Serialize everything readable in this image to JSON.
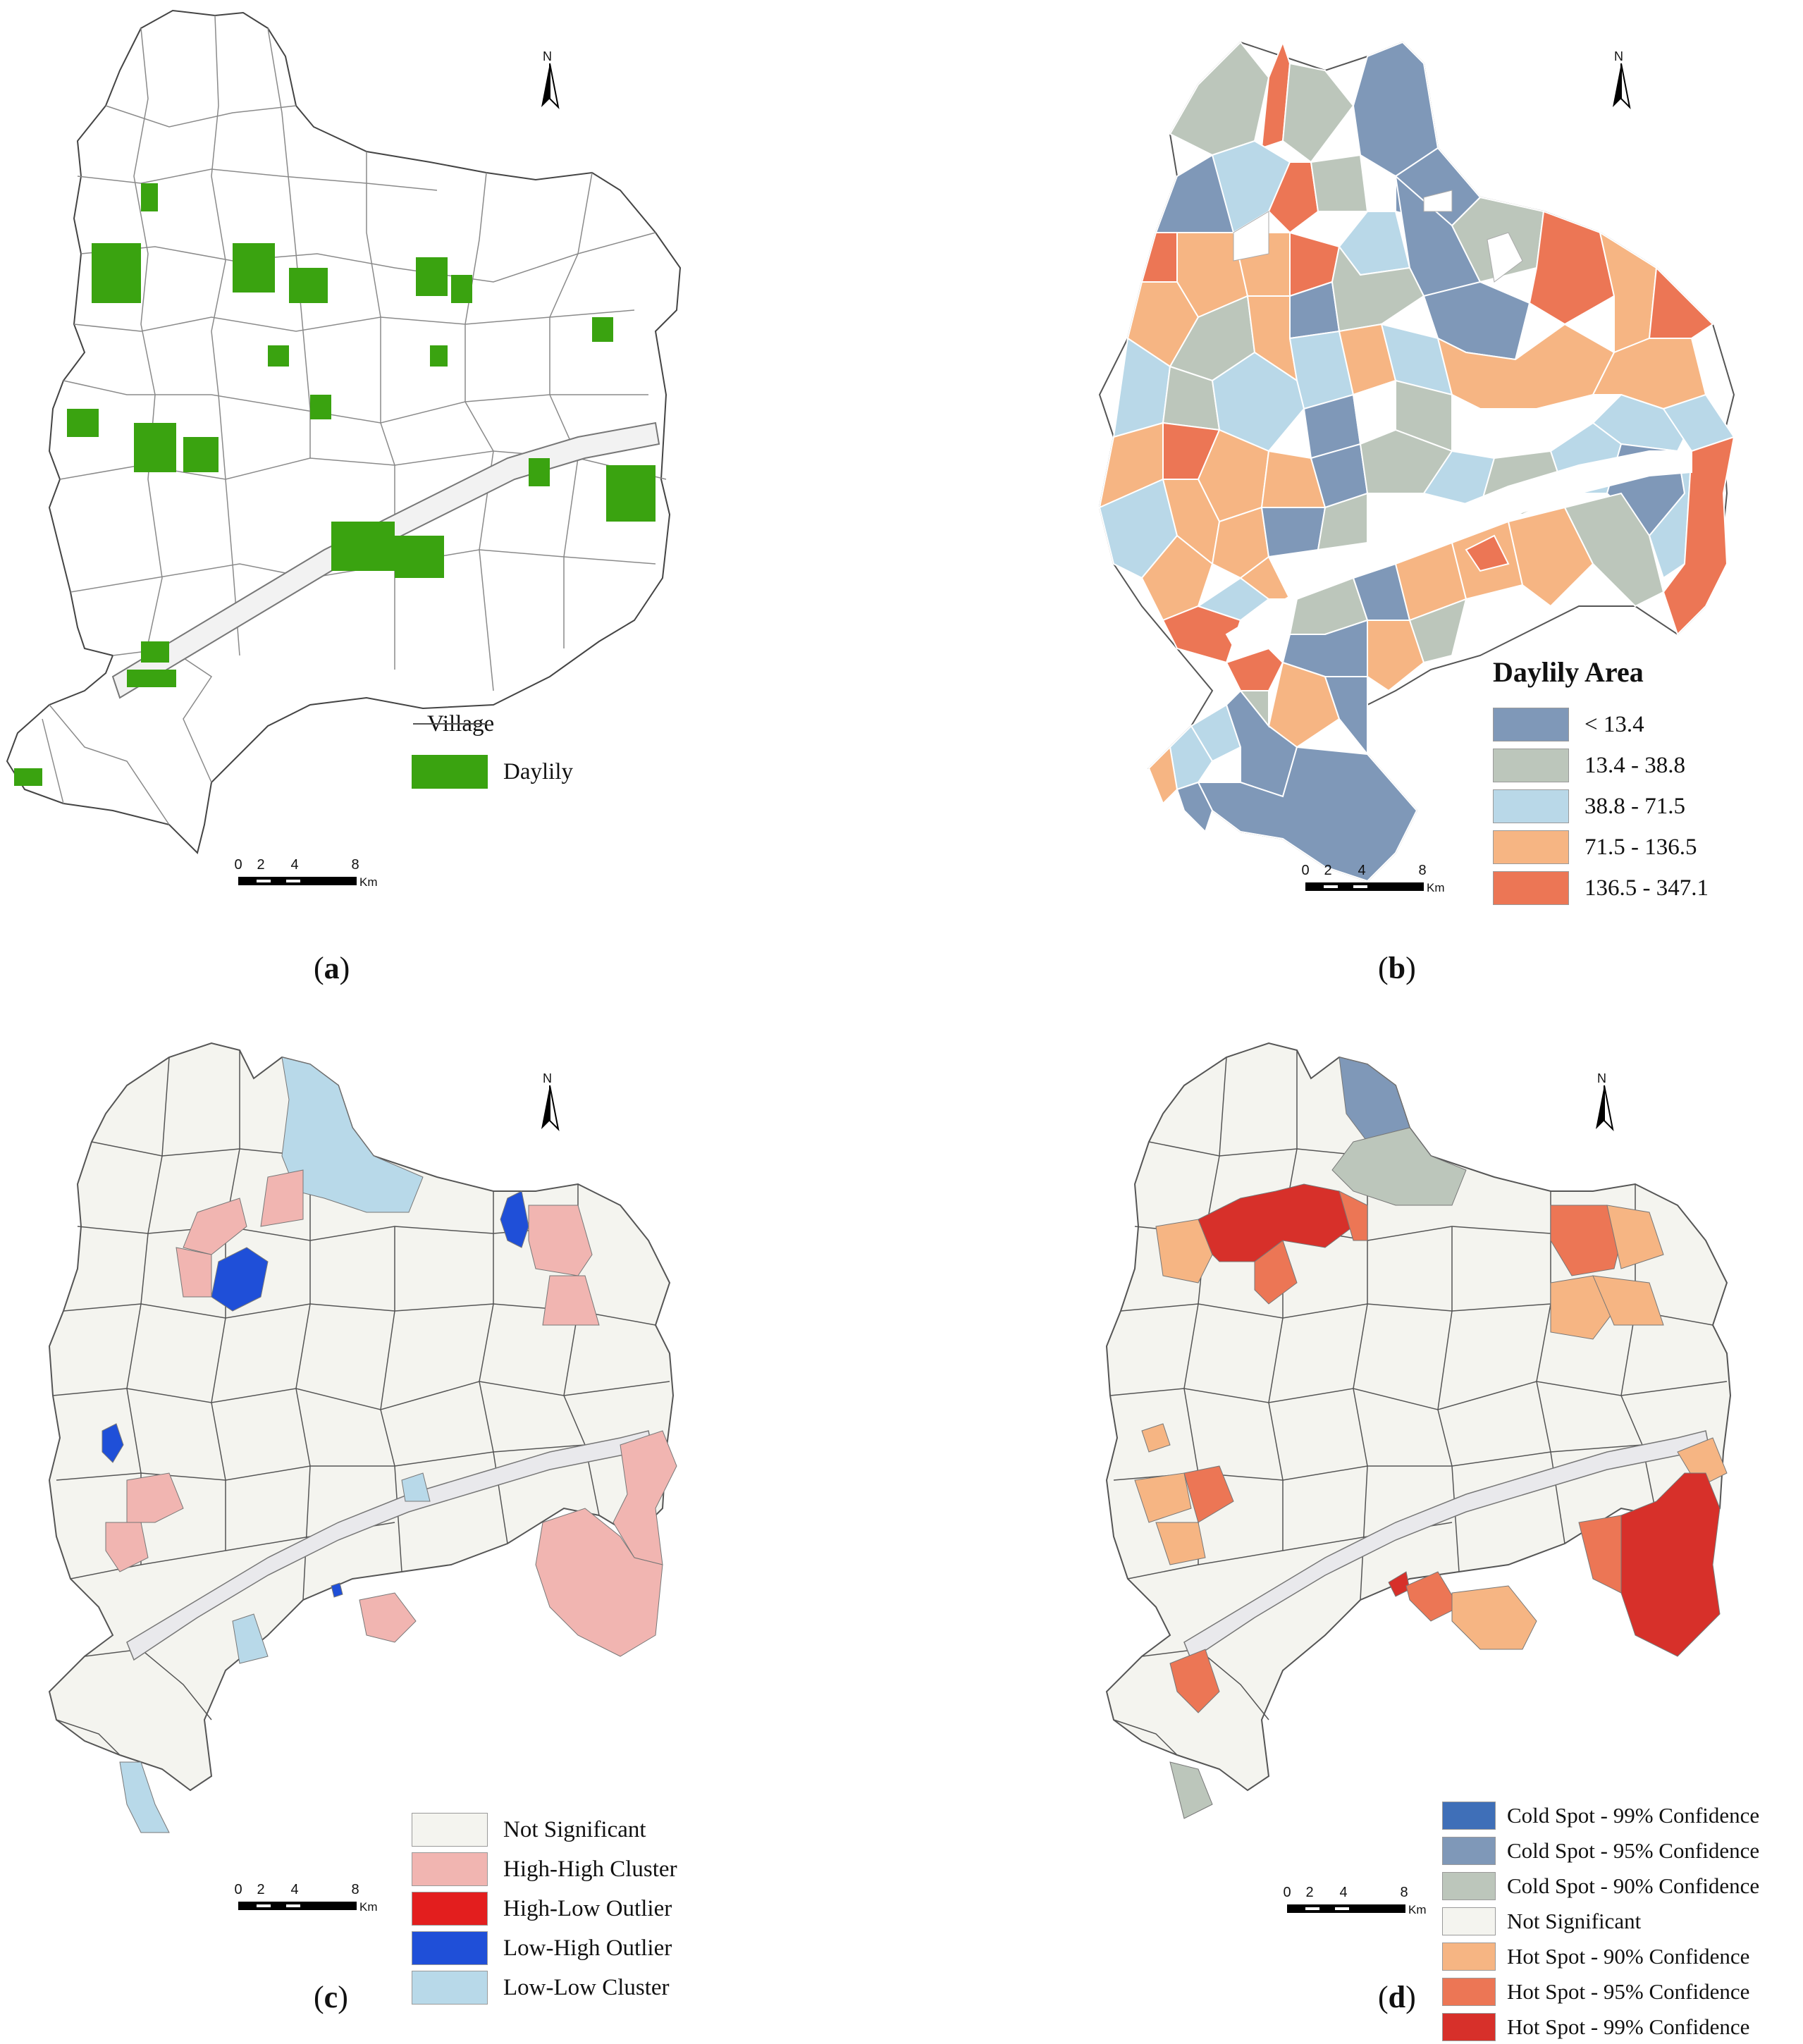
{
  "map_a": {
    "legend": [
      {
        "label": "Village",
        "type": "line",
        "color": "#555555"
      },
      {
        "label": "Daylily",
        "type": "fill",
        "color": "#3aa310"
      }
    ],
    "scale_ticks": [
      "0",
      "2",
      "4",
      "8"
    ],
    "scale_unit": "Km",
    "north": "N",
    "caption_open": "(",
    "caption_letter": "a",
    "caption_close": ")"
  },
  "map_b": {
    "legend_title": "Daylily Area",
    "legend": [
      {
        "label": "< 13.4",
        "color": "#7f98b8"
      },
      {
        "label": "13.4 - 38.8",
        "color": "#bcc6bb"
      },
      {
        "label": "38.8 - 71.5",
        "color": "#b9d8e8"
      },
      {
        "label": "71.5 - 136.5",
        "color": "#f6b583"
      },
      {
        "label": "136.5 - 347.1",
        "color": "#ec7655"
      }
    ],
    "scale_ticks": [
      "0",
      "2",
      "4",
      "8"
    ],
    "scale_unit": "Km",
    "north": "N",
    "caption_open": "(",
    "caption_letter": "b",
    "caption_close": ")"
  },
  "map_c": {
    "legend": [
      {
        "label": "Not Significant",
        "color": "#f4f4ef"
      },
      {
        "label": "High-High Cluster",
        "color": "#f1b5b1"
      },
      {
        "label": "High-Low Outlier",
        "color": "#e31e1e"
      },
      {
        "label": "Low-High Outlier",
        "color": "#1f4fd8"
      },
      {
        "label": "Low-Low Cluster",
        "color": "#b8d9e9"
      }
    ],
    "scale_ticks": [
      "0",
      "2",
      "4",
      "8"
    ],
    "scale_unit": "Km",
    "north": "N",
    "caption_open": "(",
    "caption_letter": "c",
    "caption_close": ")"
  },
  "map_d": {
    "legend": [
      {
        "label": "Cold Spot - 99% Confidence",
        "color": "#3f6fb8"
      },
      {
        "label": "Cold Spot - 95% Confidence",
        "color": "#7f98b8"
      },
      {
        "label": "Cold Spot - 90% Confidence",
        "color": "#bcc6bb"
      },
      {
        "label": "Not Significant",
        "color": "#f4f4ef"
      },
      {
        "label": "Hot Spot - 90% Confidence",
        "color": "#f6b583"
      },
      {
        "label": "Hot Spot - 95% Confidence",
        "color": "#ec7655"
      },
      {
        "label": "Hot Spot - 99% Confidence",
        "color": "#d7302a"
      }
    ],
    "scale_ticks": [
      "0",
      "2",
      "4",
      "8"
    ],
    "scale_unit": "Km",
    "north": "N",
    "caption_open": "(",
    "caption_letter": "d",
    "caption_close": ")"
  }
}
